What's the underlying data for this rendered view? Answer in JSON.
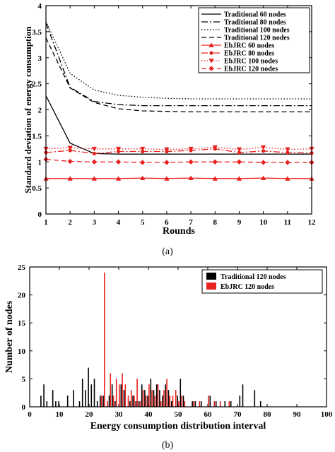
{
  "chart_data": [
    {
      "type": "line",
      "panel_label": "(a)",
      "xlabel": "Rounds",
      "ylabel": "Standard deviation of energy consumption",
      "xlim": [
        1,
        12
      ],
      "ylim": [
        0,
        4
      ],
      "x": [
        1,
        2,
        3,
        4,
        5,
        6,
        7,
        8,
        9,
        10,
        11,
        12
      ],
      "xticks": [
        "1",
        "2",
        "3",
        "4",
        "5",
        "6",
        "7",
        "8",
        "9",
        "10",
        "11",
        "12"
      ],
      "yticks": [
        "0",
        "0.5",
        "1",
        "1.5",
        "2",
        "2.5",
        "3",
        "3.5",
        "4"
      ],
      "legend_position": "top-right",
      "series": [
        {
          "name": "Traditional 60 nodes",
          "color": "#000000",
          "style": "solid",
          "marker": "none",
          "values": [
            2.27,
            1.36,
            1.16,
            1.15,
            1.15,
            1.15,
            1.15,
            1.15,
            1.15,
            1.15,
            1.15,
            1.15
          ]
        },
        {
          "name": "Traditional 80 nodes",
          "color": "#000000",
          "style": "dashdot",
          "marker": "none",
          "values": [
            3.67,
            2.43,
            2.16,
            2.1,
            2.08,
            2.08,
            2.08,
            2.08,
            2.08,
            2.08,
            2.08,
            2.08
          ]
        },
        {
          "name": "Traditional 100 nodes",
          "color": "#000000",
          "style": "dotted",
          "marker": "none",
          "values": [
            3.7,
            2.7,
            2.38,
            2.28,
            2.24,
            2.22,
            2.21,
            2.21,
            2.21,
            2.21,
            2.21,
            2.21
          ]
        },
        {
          "name": "Traditional 120 nodes",
          "color": "#000000",
          "style": "dashed",
          "marker": "none",
          "values": [
            3.38,
            2.42,
            2.14,
            2.02,
            1.98,
            1.97,
            1.96,
            1.96,
            1.96,
            1.96,
            1.96,
            1.96
          ]
        },
        {
          "name": "EbJRC 60 nodes",
          "color": "#e8201e",
          "style": "solid",
          "marker": "triangle-up",
          "values": [
            0.68,
            0.68,
            0.68,
            0.68,
            0.69,
            0.68,
            0.69,
            0.68,
            0.68,
            0.69,
            0.68,
            0.68
          ]
        },
        {
          "name": "EbJRC 80 nodes",
          "color": "#e8201e",
          "style": "dashdot",
          "marker": "circle",
          "values": [
            1.18,
            1.22,
            1.16,
            1.2,
            1.2,
            1.2,
            1.22,
            1.25,
            1.18,
            1.21,
            1.18,
            1.17
          ]
        },
        {
          "name": "EbJRC 100 nodes",
          "color": "#e8201e",
          "style": "dotted",
          "marker": "triangle-down",
          "values": [
            1.25,
            1.27,
            1.25,
            1.25,
            1.25,
            1.24,
            1.25,
            1.28,
            1.24,
            1.28,
            1.24,
            1.25
          ]
        },
        {
          "name": "EbJRC 120 nodes",
          "color": "#e8201e",
          "style": "dashed",
          "marker": "diamond",
          "values": [
            1.05,
            1.01,
            1.0,
            1.0,
            0.99,
            0.99,
            1.0,
            1.0,
            1.0,
            0.99,
            0.99,
            0.99
          ]
        }
      ]
    },
    {
      "type": "bar",
      "panel_label": "(b)",
      "xlabel": "Energy consumption distribution interval",
      "ylabel": "Number of nodes",
      "xlim": [
        0,
        100
      ],
      "ylim": [
        0,
        25
      ],
      "xticks": [
        "0",
        "10",
        "20",
        "30",
        "40",
        "50",
        "60",
        "70",
        "80",
        "90",
        "100"
      ],
      "yticks": [
        "0",
        "5",
        "10",
        "15",
        "20",
        "25"
      ],
      "legend_position": "top-right",
      "series": [
        {
          "name": "Traditional 120 nodes",
          "color": "#000000",
          "x": [
            4,
            5,
            6,
            8,
            9,
            10,
            13,
            15,
            17,
            18,
            19,
            20,
            21,
            22,
            23,
            24,
            25,
            27,
            28,
            29,
            31,
            32,
            34,
            35,
            36,
            37,
            38,
            39,
            40,
            41,
            42,
            43,
            44,
            45,
            46,
            47,
            48,
            50,
            51,
            52,
            55,
            56,
            58,
            61,
            63,
            66,
            68,
            71,
            72,
            76,
            78
          ],
          "values": [
            2,
            4,
            1,
            3,
            1,
            1,
            2,
            3,
            1,
            5,
            3,
            7,
            4,
            5,
            1,
            2,
            2,
            2,
            4,
            1,
            4,
            3,
            1,
            2,
            1,
            1,
            4,
            3,
            2,
            5,
            3,
            4,
            3,
            2,
            4,
            3,
            1,
            2,
            5,
            2,
            1,
            1,
            1,
            2,
            1,
            1,
            1,
            2,
            4,
            3,
            1
          ]
        },
        {
          "name": "EbJRC 120 nodes",
          "color": "#e8201e",
          "x": [
            24,
            25,
            26,
            27,
            28,
            29,
            30,
            31,
            32,
            33,
            34,
            35,
            36,
            37,
            38,
            39,
            40,
            41,
            42,
            43,
            44,
            45,
            46,
            47,
            48,
            49,
            50,
            51,
            52,
            55,
            57,
            60,
            62,
            64,
            67
          ],
          "values": [
            2,
            24,
            1,
            6,
            2,
            5,
            4,
            6,
            4,
            2,
            3,
            2,
            5,
            1,
            3,
            2,
            4,
            3,
            2,
            4,
            1,
            3,
            5,
            2,
            2,
            3,
            1,
            2,
            1,
            1,
            1,
            2,
            1,
            1,
            1
          ]
        }
      ]
    }
  ]
}
